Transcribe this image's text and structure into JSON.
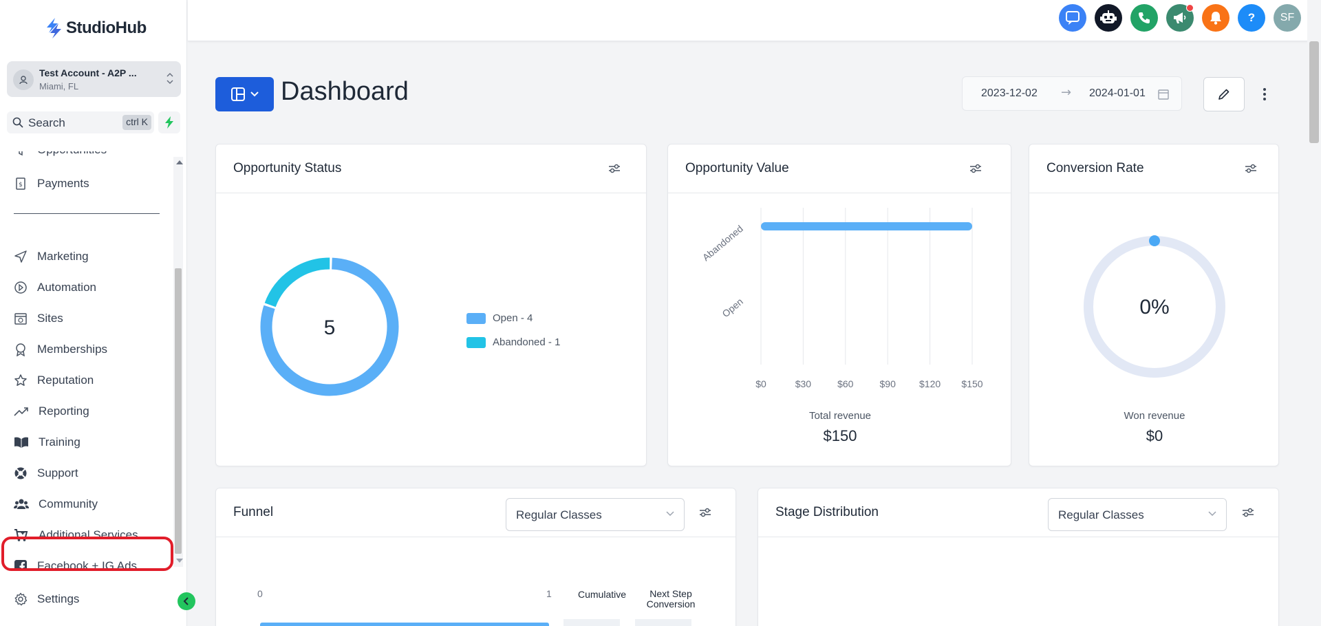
{
  "app": {
    "name": "StudioHub"
  },
  "account": {
    "name": "Test Account - A2P ...",
    "location": "Miami, FL"
  },
  "search": {
    "placeholder": "Search",
    "shortcut": "ctrl K"
  },
  "nav": {
    "items_top": [
      {
        "label": "Opportunities",
        "icon": "funnel-icon"
      },
      {
        "label": "Payments",
        "icon": "payments-icon"
      }
    ],
    "items": [
      {
        "label": "Marketing",
        "icon": "send-icon"
      },
      {
        "label": "Automation",
        "icon": "automation-icon"
      },
      {
        "label": "Sites",
        "icon": "sites-icon"
      },
      {
        "label": "Memberships",
        "icon": "badge-icon"
      },
      {
        "label": "Reputation",
        "icon": "star-icon"
      },
      {
        "label": "Reporting",
        "icon": "trend-icon"
      },
      {
        "label": "Training",
        "icon": "book-icon"
      },
      {
        "label": "Support",
        "icon": "lifebuoy-icon"
      },
      {
        "label": "Community",
        "icon": "users-icon"
      },
      {
        "label": "Additional Services",
        "icon": "cart-icon"
      },
      {
        "label": "Facebook + IG Ads",
        "icon": "facebook-icon"
      }
    ],
    "settings": "Settings"
  },
  "topbar": {
    "buttons": [
      {
        "name": "chat-icon",
        "color": "#3b82f6"
      },
      {
        "name": "robot-icon",
        "color": "#111827"
      },
      {
        "name": "phone-icon",
        "color": "#22a366"
      },
      {
        "name": "megaphone-icon",
        "color": "#3b8a6f"
      },
      {
        "name": "bell-icon",
        "color": "#f97316"
      },
      {
        "name": "help-icon",
        "color": "#1d8cf8",
        "text": "?"
      },
      {
        "name": "user-avatar",
        "color": "#84a9ac",
        "text": "SF"
      }
    ]
  },
  "header": {
    "title": "Dashboard",
    "date_start": "2023-12-02",
    "date_end": "2024-01-01"
  },
  "cards": {
    "opportunity_status": {
      "title": "Opportunity Status",
      "total": "5",
      "legend": [
        {
          "label": "Open - 4",
          "color": "#5aaff7"
        },
        {
          "label": "Abandoned - 1",
          "color": "#22c3e6"
        }
      ]
    },
    "opportunity_value": {
      "title": "Opportunity Value",
      "footer_label": "Total revenue",
      "footer_value": "$150"
    },
    "conversion_rate": {
      "title": "Conversion Rate",
      "value": "0%",
      "footer_label": "Won revenue",
      "footer_value": "$0"
    },
    "funnel": {
      "title": "Funnel",
      "select": "Regular Classes",
      "axis_start": "0",
      "axis_end": "1",
      "col1": "Cumulative",
      "col2_line1": "Next Step",
      "col2_line2": "Conversion"
    },
    "stage_distribution": {
      "title": "Stage Distribution",
      "select": "Regular Classes"
    }
  },
  "chart_data": [
    {
      "type": "pie",
      "title": "Opportunity Status",
      "categories": [
        "Open",
        "Abandoned"
      ],
      "values": [
        4,
        1
      ],
      "colors": [
        "#5aaff7",
        "#22c3e6"
      ],
      "legend": "right"
    },
    {
      "type": "bar",
      "orientation": "horizontal",
      "title": "Opportunity Value",
      "categories": [
        "Abandoned",
        "Open"
      ],
      "values": [
        150,
        0
      ],
      "xticks": [
        "$0",
        "$30",
        "$60",
        "$90",
        "$120",
        "$150"
      ],
      "xlim": [
        0,
        150
      ],
      "grid": true,
      "color": "#5aaff7"
    },
    {
      "type": "pie",
      "title": "Conversion Rate",
      "categories": [
        "Won"
      ],
      "values": [
        0
      ],
      "unit": "%"
    }
  ]
}
